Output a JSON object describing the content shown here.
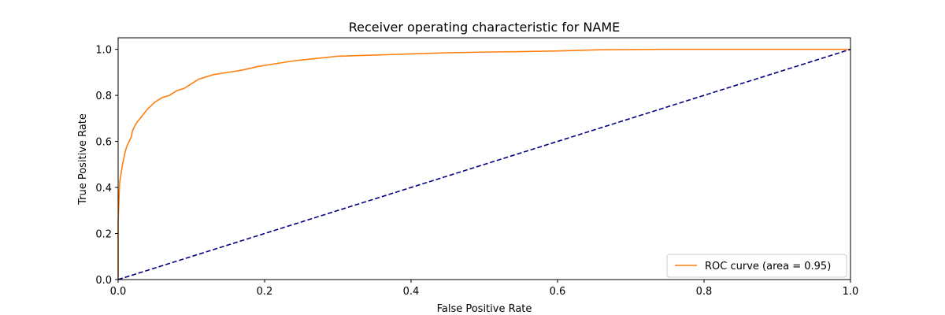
{
  "chart_data": {
    "type": "line",
    "title": "Receiver operating characteristic for NAME",
    "xlabel": "False Positive Rate",
    "ylabel": "True Positive Rate",
    "xlim": [
      0.0,
      1.0
    ],
    "ylim": [
      0.0,
      1.05
    ],
    "xticks": [
      "0.0",
      "0.2",
      "0.4",
      "0.6",
      "0.8",
      "1.0"
    ],
    "yticks": [
      "0.0",
      "0.2",
      "0.4",
      "0.6",
      "0.8",
      "1.0"
    ],
    "grid": false,
    "legend_position": "lower right",
    "series": [
      {
        "name": "ROC curve (area = 0.95)",
        "color": "#ff7f0e",
        "line_style": "solid",
        "x": [
          0.0,
          0.0,
          0.002,
          0.004,
          0.006,
          0.008,
          0.01,
          0.012,
          0.015,
          0.018,
          0.02,
          0.025,
          0.03,
          0.035,
          0.04,
          0.05,
          0.06,
          0.07,
          0.08,
          0.09,
          0.1,
          0.11,
          0.12,
          0.13,
          0.15,
          0.17,
          0.19,
          0.21,
          0.24,
          0.27,
          0.3,
          0.35,
          0.4,
          0.45,
          0.5,
          0.55,
          0.6,
          0.66,
          0.75,
          0.85,
          1.0
        ],
        "y": [
          0.0,
          0.25,
          0.42,
          0.46,
          0.5,
          0.53,
          0.56,
          0.58,
          0.6,
          0.62,
          0.65,
          0.68,
          0.7,
          0.72,
          0.74,
          0.77,
          0.79,
          0.8,
          0.82,
          0.83,
          0.85,
          0.87,
          0.88,
          0.89,
          0.9,
          0.91,
          0.925,
          0.935,
          0.95,
          0.96,
          0.97,
          0.975,
          0.98,
          0.985,
          0.988,
          0.99,
          0.993,
          0.998,
          1.0,
          1.0,
          1.0
        ]
      },
      {
        "color": "#000080",
        "line_style": "dashed",
        "x": [
          0.0,
          1.0
        ],
        "y": [
          0.0,
          1.0
        ]
      }
    ]
  }
}
